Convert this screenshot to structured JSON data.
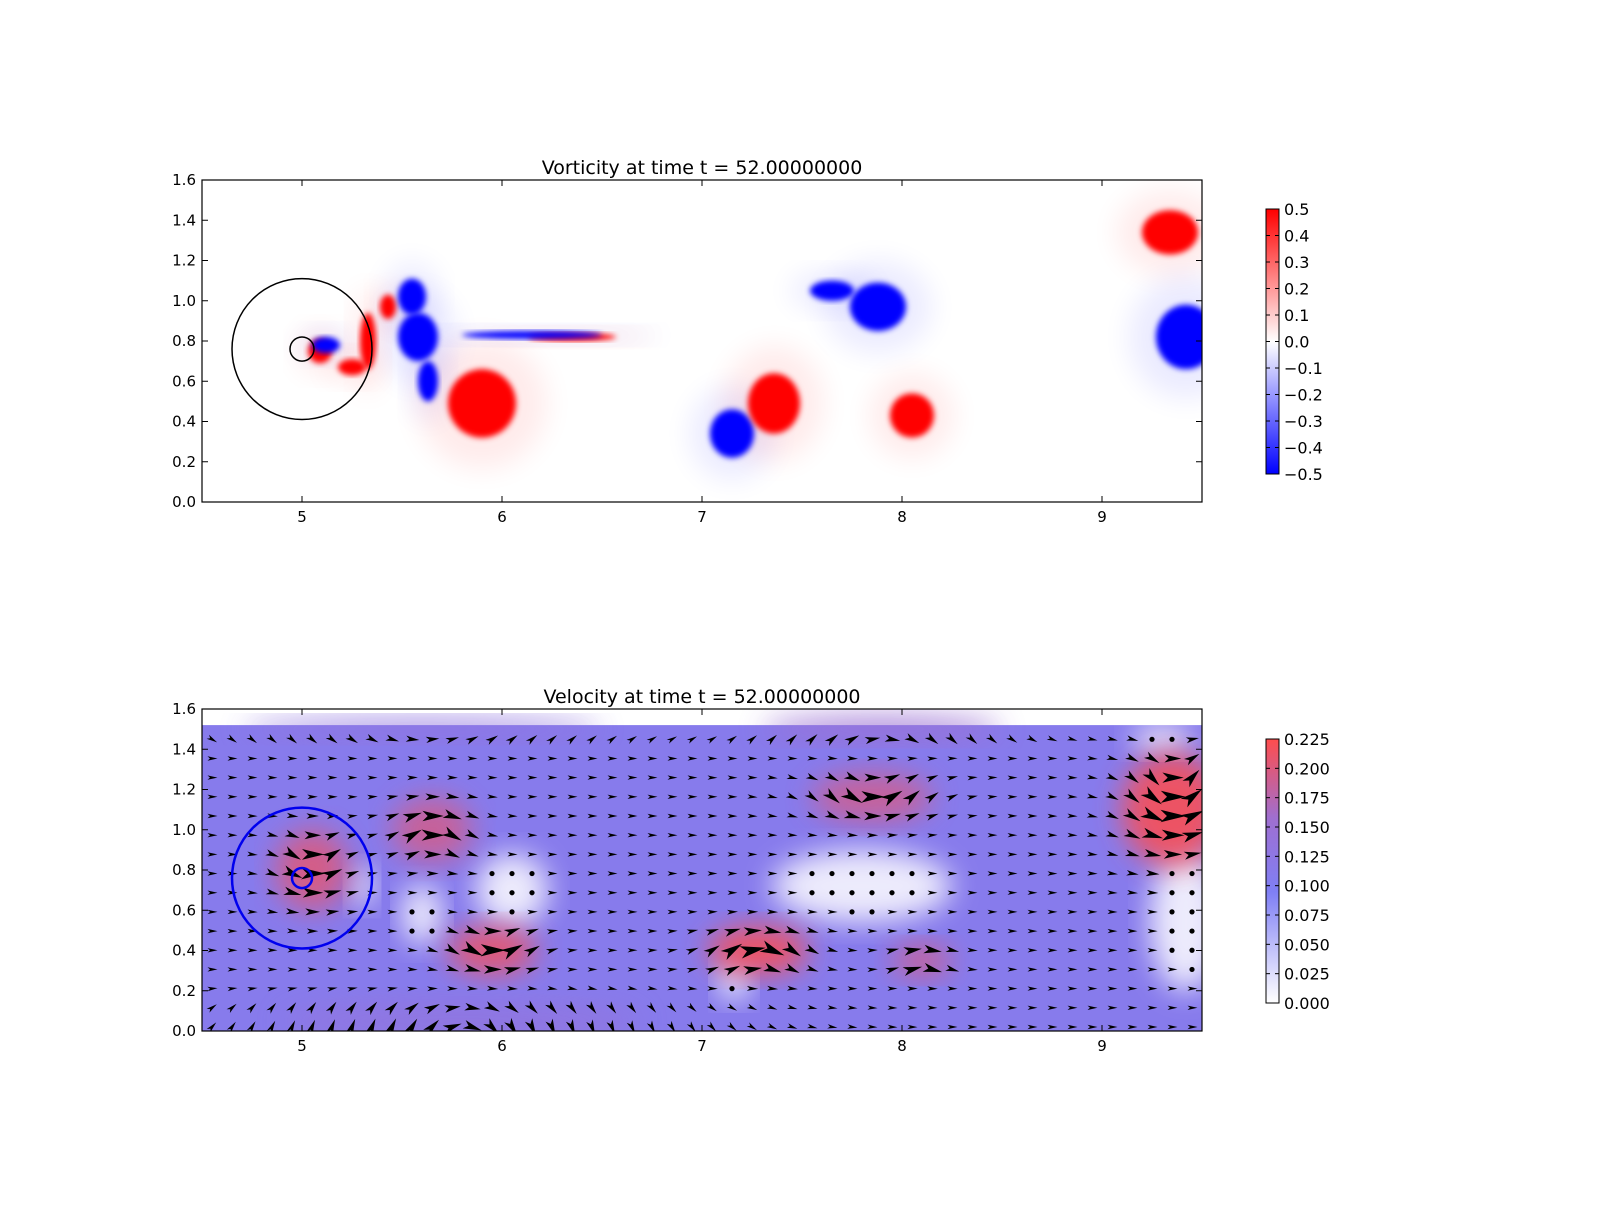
{
  "chart_data": [
    {
      "type": "heatmap",
      "title": "Vorticity at time t =    52.00000000",
      "xlabel": "",
      "ylabel": "",
      "xlim": [
        4.5,
        9.5
      ],
      "ylim": [
        0.0,
        1.6
      ],
      "x_ticks": [
        "5",
        "6",
        "7",
        "8",
        "9"
      ],
      "y_ticks": [
        "0.0",
        "0.2",
        "0.4",
        "0.6",
        "0.8",
        "1.0",
        "1.2",
        "1.4",
        "1.6"
      ],
      "colormap": "bwr",
      "colorbar": {
        "range": [
          -0.5,
          0.5
        ],
        "ticks": [
          "0.5",
          "0.4",
          "0.3",
          "0.2",
          "0.1",
          "0.0",
          "−0.1",
          "−0.2",
          "−0.3",
          "−0.4",
          "−0.5"
        ],
        "colors": [
          "#ff0000",
          "#ffffff",
          "#0000ff"
        ]
      },
      "grid": false,
      "vortices": [
        {
          "sign": 1,
          "x": 5.09,
          "y": 0.75,
          "rx": 0.06,
          "ry": 0.06
        },
        {
          "sign": -1,
          "x": 5.12,
          "y": 0.78,
          "rx": 0.07,
          "ry": 0.04
        },
        {
          "sign": 1,
          "x": 5.25,
          "y": 0.67,
          "rx": 0.07,
          "ry": 0.04
        },
        {
          "sign": 1,
          "x": 5.33,
          "y": 0.8,
          "rx": 0.04,
          "ry": 0.14
        },
        {
          "sign": 1,
          "x": 5.43,
          "y": 0.97,
          "rx": 0.04,
          "ry": 0.06
        },
        {
          "sign": -1,
          "x": 5.55,
          "y": 1.02,
          "rx": 0.07,
          "ry": 0.09
        },
        {
          "sign": -1,
          "x": 5.58,
          "y": 0.82,
          "rx": 0.1,
          "ry": 0.12
        },
        {
          "sign": -1,
          "x": 5.63,
          "y": 0.6,
          "rx": 0.05,
          "ry": 0.1
        },
        {
          "sign": 1,
          "x": 5.9,
          "y": 0.49,
          "rx": 0.17,
          "ry": 0.17
        },
        {
          "sign": 1,
          "x": 6.35,
          "y": 0.82,
          "rx": 0.22,
          "ry": 0.02
        },
        {
          "sign": -1,
          "x": 6.15,
          "y": 0.83,
          "rx": 0.35,
          "ry": 0.02
        },
        {
          "sign": -1,
          "x": 7.15,
          "y": 0.34,
          "rx": 0.11,
          "ry": 0.12
        },
        {
          "sign": 1,
          "x": 7.36,
          "y": 0.49,
          "rx": 0.13,
          "ry": 0.15
        },
        {
          "sign": -1,
          "x": 7.88,
          "y": 0.97,
          "rx": 0.14,
          "ry": 0.12
        },
        {
          "sign": -1,
          "x": 7.65,
          "y": 1.05,
          "rx": 0.11,
          "ry": 0.05
        },
        {
          "sign": 1,
          "x": 8.05,
          "y": 0.43,
          "rx": 0.11,
          "ry": 0.11
        },
        {
          "sign": 1,
          "x": 9.34,
          "y": 1.34,
          "rx": 0.14,
          "ry": 0.11
        },
        {
          "sign": -1,
          "x": 9.42,
          "y": 0.82,
          "rx": 0.15,
          "ry": 0.16
        }
      ],
      "circles": [
        {
          "x": 5.0,
          "y": 0.76,
          "r": 0.35,
          "color": "#000000"
        },
        {
          "x": 5.0,
          "y": 0.76,
          "r": 0.06,
          "color": "#000000"
        }
      ]
    },
    {
      "type": "heatmap",
      "title": "Velocity at time t =    52.00000000",
      "xlabel": "",
      "ylabel": "",
      "xlim": [
        4.5,
        9.5
      ],
      "ylim": [
        0.0,
        1.6
      ],
      "x_ticks": [
        "5",
        "6",
        "7",
        "8",
        "9"
      ],
      "y_ticks": [
        "0.0",
        "0.2",
        "0.4",
        "0.6",
        "0.8",
        "1.0",
        "1.2",
        "1.4",
        "1.6"
      ],
      "colormap": "white-blue-red",
      "colorbar": {
        "range": [
          0.0,
          0.225
        ],
        "ticks": [
          "0.225",
          "0.200",
          "0.175",
          "0.150",
          "0.125",
          "0.100",
          "0.075",
          "0.050",
          "0.025",
          "0.000"
        ],
        "colors": [
          "#ff4d4d",
          "#9f6fd0",
          "#7f7ff5",
          "#ffffff"
        ]
      },
      "grid": false,
      "field_top": 1.52,
      "background_speed": 0.11,
      "hot_spots": [
        {
          "x": 5.05,
          "y": 0.8,
          "rx": 0.18,
          "ry": 0.2,
          "speed": 0.2
        },
        {
          "x": 5.65,
          "y": 1.0,
          "rx": 0.2,
          "ry": 0.16,
          "speed": 0.19
        },
        {
          "x": 5.95,
          "y": 0.4,
          "rx": 0.22,
          "ry": 0.12,
          "speed": 0.21
        },
        {
          "x": 7.28,
          "y": 0.4,
          "rx": 0.25,
          "ry": 0.12,
          "speed": 0.22
        },
        {
          "x": 7.85,
          "y": 1.16,
          "rx": 0.3,
          "ry": 0.12,
          "speed": 0.19
        },
        {
          "x": 8.1,
          "y": 0.35,
          "rx": 0.15,
          "ry": 0.08,
          "speed": 0.19
        },
        {
          "x": 9.35,
          "y": 1.1,
          "rx": 0.25,
          "ry": 0.28,
          "speed": 0.22
        },
        {
          "x": 5.8,
          "y": 0.05,
          "rx": 0.9,
          "ry": 0.1,
          "speed": 0.13
        },
        {
          "x": 5.6,
          "y": 1.5,
          "rx": 0.9,
          "ry": 0.05,
          "speed": 0.13
        },
        {
          "x": 7.9,
          "y": 1.5,
          "rx": 0.6,
          "ry": 0.06,
          "speed": 0.15
        }
      ],
      "cold_spots": [
        {
          "x": 6.05,
          "y": 0.7,
          "rx": 0.18,
          "ry": 0.18
        },
        {
          "x": 5.6,
          "y": 0.58,
          "rx": 0.1,
          "ry": 0.15
        },
        {
          "x": 7.8,
          "y": 0.72,
          "rx": 0.45,
          "ry": 0.18
        },
        {
          "x": 7.16,
          "y": 0.25,
          "rx": 0.08,
          "ry": 0.1
        },
        {
          "x": 9.42,
          "y": 0.55,
          "rx": 0.18,
          "ry": 0.35
        },
        {
          "x": 9.3,
          "y": 1.45,
          "rx": 0.15,
          "ry": 0.07
        },
        {
          "x": 5.3,
          "y": 0.72,
          "rx": 0.06,
          "ry": 0.1
        }
      ],
      "circles": [
        {
          "x": 5.0,
          "y": 0.76,
          "r": 0.35,
          "color": "#0000ee"
        },
        {
          "x": 5.0,
          "y": 0.76,
          "r": 0.05,
          "color": "#0000ee"
        }
      ]
    }
  ]
}
